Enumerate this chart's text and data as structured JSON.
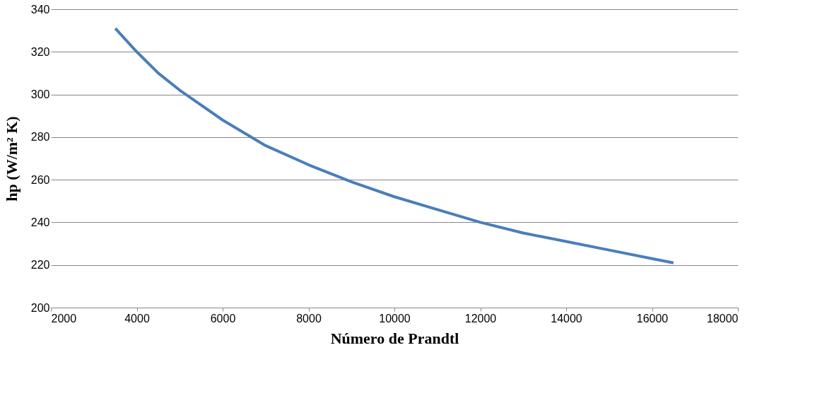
{
  "chart_data": {
    "type": "line",
    "xlabel": "Número de Prandtl",
    "ylabel": "hp (W/m² K)",
    "x": [
      3500,
      4000,
      4500,
      5000,
      6000,
      7000,
      8000,
      9000,
      10000,
      11000,
      12000,
      13000,
      14000,
      15000,
      16000,
      16500
    ],
    "series": [
      {
        "color": "#4a7ebb",
        "values": [
          331,
          320,
          310,
          302,
          288,
          276,
          267,
          259,
          252,
          246,
          240,
          235,
          231,
          227,
          223,
          221
        ]
      }
    ],
    "xlim": [
      2000,
      18000
    ],
    "xticks": [
      2000,
      4000,
      6000,
      8000,
      10000,
      12000,
      14000,
      16000,
      18000
    ],
    "ylim": [
      200,
      340
    ],
    "yticks": [
      200,
      220,
      240,
      260,
      280,
      300,
      320,
      340
    ],
    "grid": "y",
    "marker": "none",
    "line_style": "solid"
  }
}
